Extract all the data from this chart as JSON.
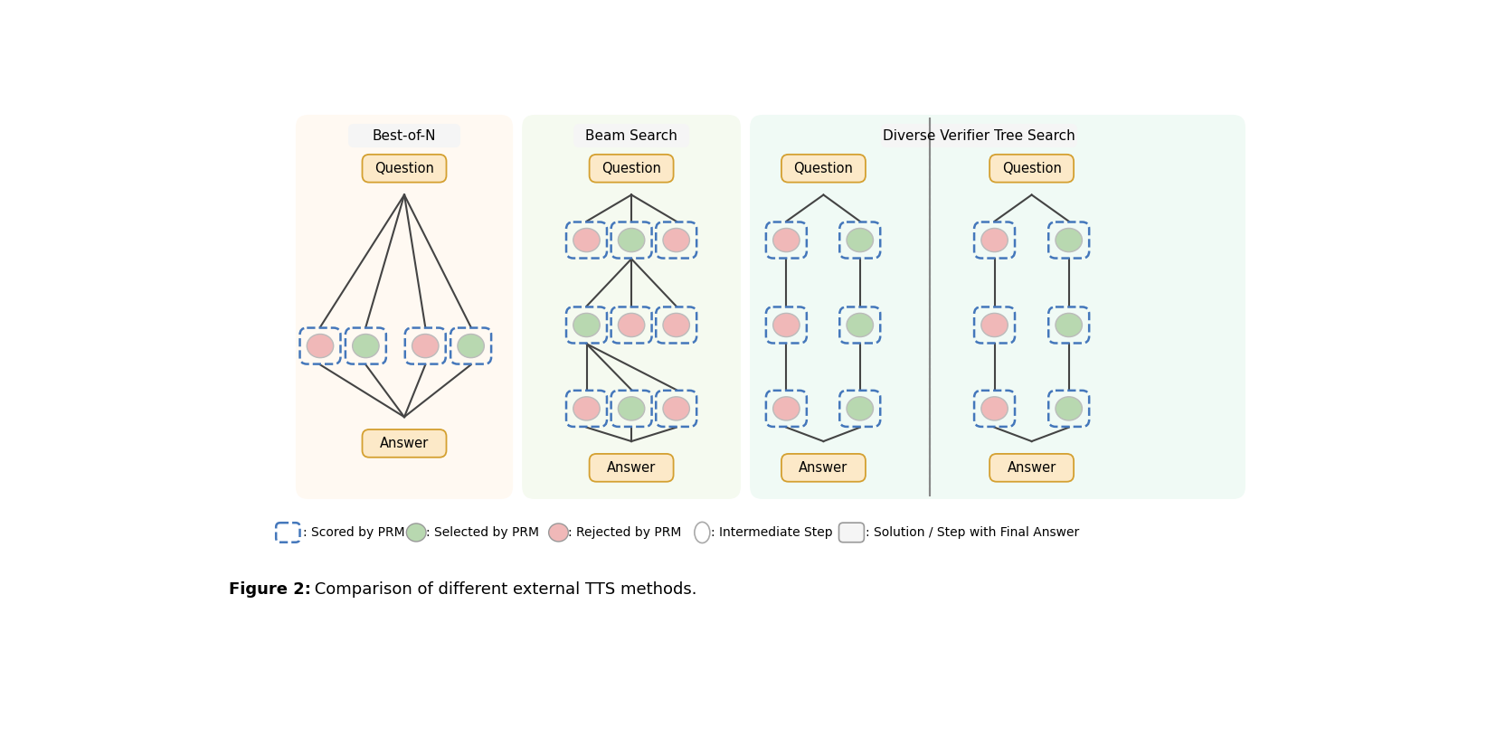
{
  "title_bold": "Figure 2:",
  "title_rest": " Comparison of different external TTS methods.",
  "section_titles": [
    "Best-of-N",
    "Beam Search",
    "Diverse Verifier Tree Search"
  ],
  "bg_colors": {
    "bon": "#fff9f2",
    "beam": "#f5faf0",
    "dvts": "#f0faf5"
  },
  "question_box_color": "#fce9c8",
  "answer_box_color": "#fce9c8",
  "node_green": "#b8d8b0",
  "node_pink": "#f0b8b8",
  "node_white": "#f8f8f8",
  "dashed_box_color": "#4477bb",
  "edge_color": "#444444",
  "sep_line_color": "#888888",
  "legend_items": [
    {
      "label": ": Scored by PRM",
      "type": "dashed_rect"
    },
    {
      "label": ": Selected by PRM",
      "type": "green_circle"
    },
    {
      "label": ": Rejected by PRM",
      "type": "pink_circle"
    },
    {
      "label": ": Intermediate Step",
      "type": "white_circle"
    },
    {
      "label": ": Solution / Step with Final Answer",
      "type": "white_rect"
    }
  ]
}
